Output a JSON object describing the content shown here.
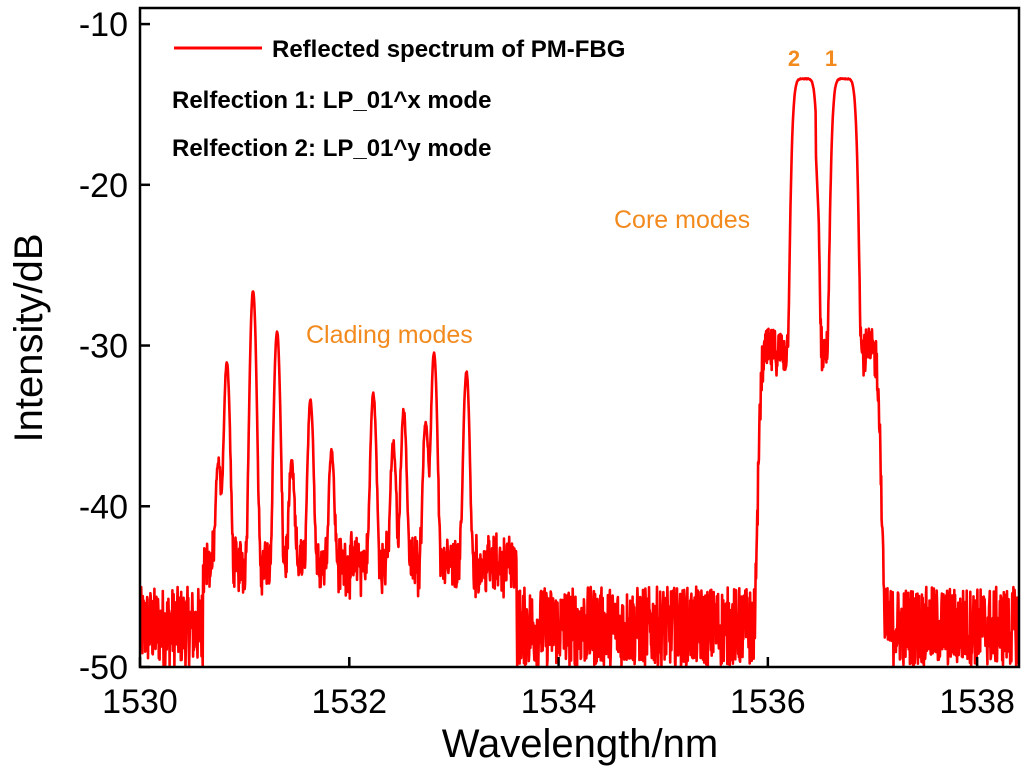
{
  "chart_data": {
    "type": "line",
    "xlabel": "Wavelength/nm",
    "ylabel": "Intensity/dB",
    "xlim": [
      1530,
      1538.4
    ],
    "ylim": [
      -50,
      -9
    ],
    "x_ticks": [
      1530,
      1532,
      1534,
      1536,
      1538
    ],
    "y_ticks": [
      -10,
      -20,
      -30,
      -40,
      -50
    ],
    "grid": false,
    "legend_position": "top-left",
    "series": [
      {
        "name": "Reflected spectrum of PM-FBG",
        "color": "#ff0000",
        "noise_floor_db": -47.5,
        "noise_amplitude_db": 2.5,
        "peaks": [
          {
            "x": 1530.75,
            "y": -38.5
          },
          {
            "x": 1530.83,
            "y": -31.3
          },
          {
            "x": 1531.08,
            "y": -26.7
          },
          {
            "x": 1531.31,
            "y": -29.3
          },
          {
            "x": 1531.45,
            "y": -38.6
          },
          {
            "x": 1531.63,
            "y": -33.9
          },
          {
            "x": 1531.83,
            "y": -37.5
          },
          {
            "x": 1532.23,
            "y": -33.4
          },
          {
            "x": 1532.42,
            "y": -37.0
          },
          {
            "x": 1532.52,
            "y": -34.6
          },
          {
            "x": 1532.73,
            "y": -35.3
          },
          {
            "x": 1532.81,
            "y": -30.7
          },
          {
            "x": 1533.12,
            "y": -31.9
          }
        ],
        "core_band": {
          "x_start": 1535.93,
          "x_end": 1537.06,
          "shoulder_db": -30.5
        },
        "core_peaks": [
          {
            "x": 1536.35,
            "y": -13.5
          },
          {
            "x": 1536.73,
            "y": -13.5
          }
        ],
        "core_dip": {
          "x": 1536.52,
          "y": -27.2
        }
      }
    ],
    "annotations": {
      "clading": "Clading modes",
      "core": "Core modes",
      "peak1": "1",
      "peak2": "2"
    },
    "legend_lines": [
      "Relfection 1: LP_01^x mode",
      "Relfection 2: LP_01^y mode"
    ],
    "colors": {
      "line": "#ff0000",
      "annotation": "#f28a1e",
      "axis": "#000000"
    }
  }
}
